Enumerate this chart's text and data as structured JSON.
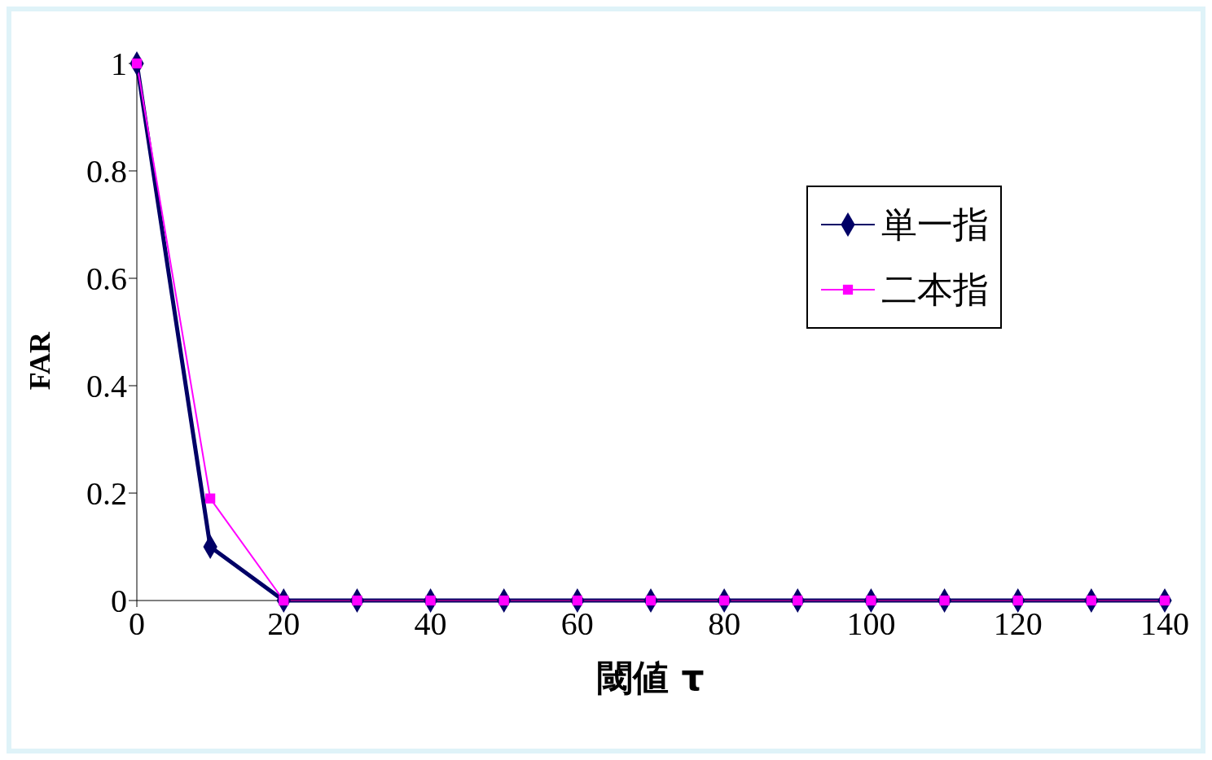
{
  "chart_data": {
    "type": "line",
    "xlabel": "閾値 τ",
    "ylabel": "FAR",
    "x": [
      0,
      10,
      20,
      30,
      40,
      50,
      60,
      70,
      80,
      90,
      100,
      110,
      120,
      130,
      140
    ],
    "series": [
      {
        "name": "単一指",
        "color": "#000066",
        "marker": "diamond",
        "values": [
          1,
          0.1,
          0,
          0,
          0,
          0,
          0,
          0,
          0,
          0,
          0,
          0,
          0,
          0,
          0
        ]
      },
      {
        "name": "二本指",
        "color": "#ff00ff",
        "marker": "square",
        "values": [
          1,
          0.19,
          0,
          0,
          0,
          0,
          0,
          0,
          0,
          0,
          0,
          0,
          0,
          0,
          0
        ]
      }
    ],
    "xlim": [
      0,
      140
    ],
    "xticks": [
      0,
      20,
      40,
      60,
      80,
      100,
      120,
      140
    ],
    "ylim": [
      0,
      1
    ],
    "yticks": [
      0,
      0.2,
      0.4,
      0.6,
      0.8,
      1
    ],
    "grid": false,
    "legend": "top right"
  }
}
